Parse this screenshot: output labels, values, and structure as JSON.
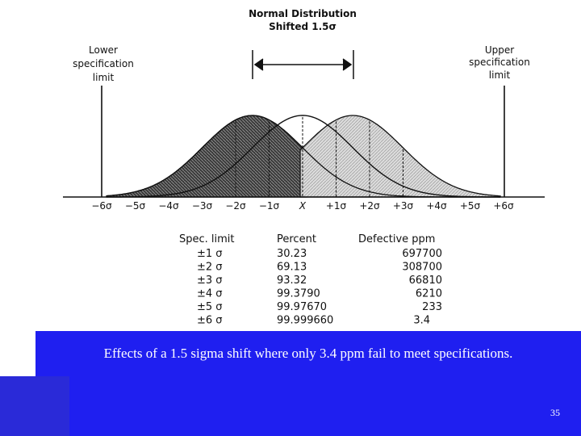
{
  "title": {
    "line1": "Normal Distribution",
    "line2": "Shifted 1.5σ"
  },
  "labels": {
    "lower_limit": [
      "Lower",
      "specification",
      "limit"
    ],
    "upper_limit": [
      "Upper",
      "specification",
      "limit"
    ]
  },
  "axis_ticks": [
    "−6σ",
    "−5σ",
    "−4σ",
    "−3σ",
    "−2σ",
    "−1σ",
    "X",
    "+1σ",
    "+2σ",
    "+3σ",
    "+4σ",
    "+5σ",
    "+6σ"
  ],
  "table": {
    "headers": [
      "Spec. limit",
      "Percent",
      "Defective ppm"
    ],
    "rows": [
      [
        "±1 σ",
        "30.23",
        "697700"
      ],
      [
        "±2 σ",
        "69.13",
        "308700"
      ],
      [
        "±3 σ",
        "93.32",
        "66810"
      ],
      [
        "±4 σ",
        "99.3790",
        "6210"
      ],
      [
        "±5 σ",
        "99.97670",
        "233"
      ],
      [
        "±6 σ",
        "99.999660",
        "3.4"
      ]
    ]
  },
  "caption": "Effects of a 1.5 sigma shift where only 3.4 ppm fail to meet specifications.",
  "page_number": "35",
  "colors": {
    "band": "#1f1ff0",
    "band_corner": "#2a2ad8",
    "caption_text": "#ffffff"
  }
}
